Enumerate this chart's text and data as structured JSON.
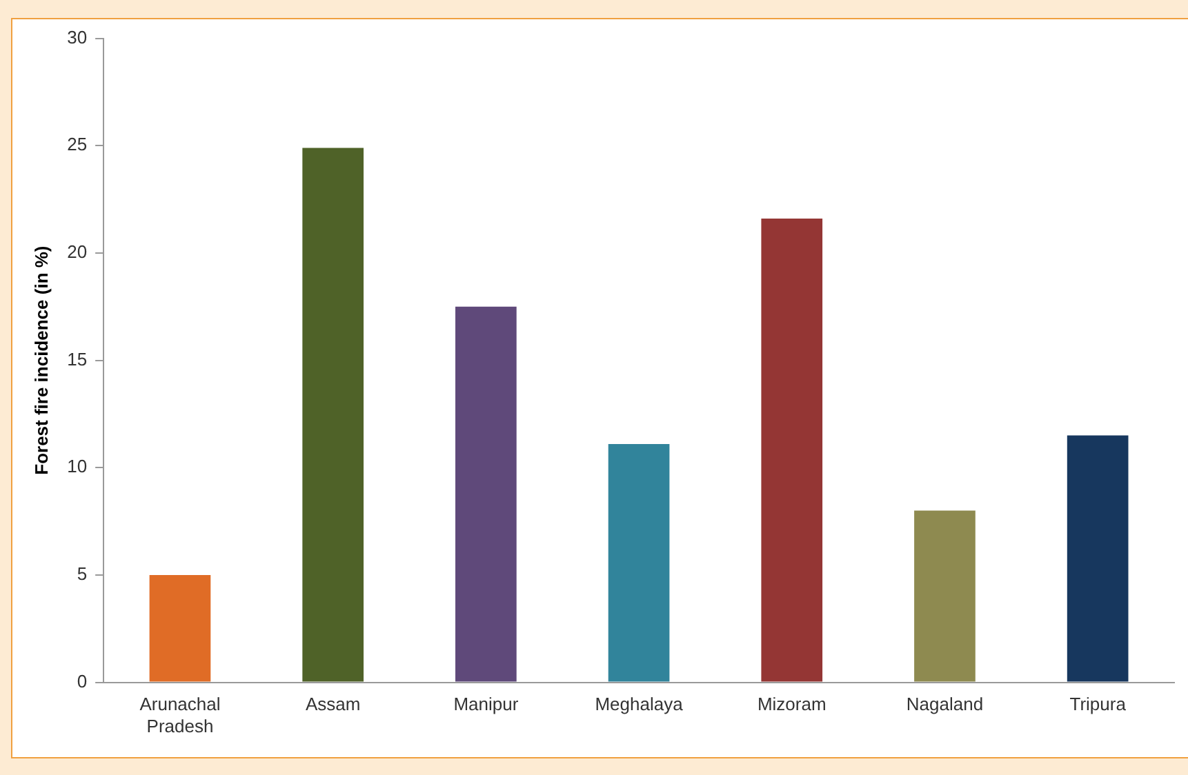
{
  "chart_data": {
    "type": "bar",
    "ylabel": "Forest fire incidence (in %)",
    "categories": [
      "Arunachal Pradesh",
      "Assam",
      "Manipur",
      "Meghalaya",
      "Mizoram",
      "Nagaland",
      "Tripura"
    ],
    "values": [
      5.0,
      24.9,
      17.5,
      11.1,
      21.6,
      8.0,
      11.5
    ],
    "colors": [
      "#e06c26",
      "#4f6228",
      "#5f497a",
      "#31849b",
      "#943634",
      "#8e8a50",
      "#17375e"
    ],
    "ylim": [
      0,
      30
    ],
    "yticks": [
      0,
      5,
      10,
      15,
      20,
      25,
      30
    ],
    "grid": false,
    "legend": false
  }
}
